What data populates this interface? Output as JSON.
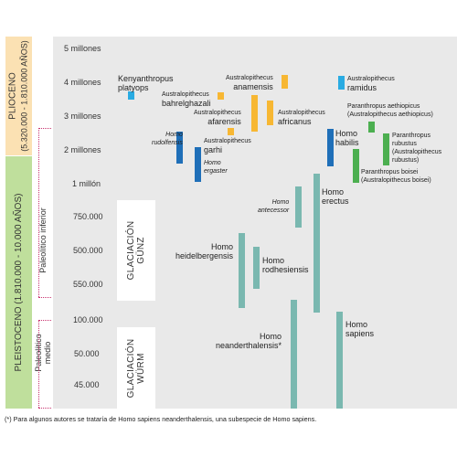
{
  "eras": {
    "pliocene": {
      "name": "PLIOCENO",
      "range": "(5.320.000 - 1.810.000 AÑOS)"
    },
    "pleistocene": {
      "name": "PLEISTOCENO (1.810.000 - 10.000 AÑOS)"
    }
  },
  "subperiods": {
    "lower": "Paleolítico inferior",
    "middle": "Paleolítico medio"
  },
  "ticks": [
    "5 millones",
    "4 millones",
    "3 millones",
    "2 millones",
    "1 millón",
    "750.000",
    "500.000",
    "550.000",
    "100.000",
    "50.000",
    "45.000"
  ],
  "glaciations": {
    "gunz": [
      "GLACIACIÓN",
      "GÜNZ"
    ],
    "wurm": [
      "GLACIACIÓN",
      "WÜRM"
    ]
  },
  "species": [
    {
      "id": "kenyanthropus",
      "lines": [
        "Kenyanthropus",
        "platyops"
      ],
      "color": "#29abe2"
    },
    {
      "id": "bahrelghazali",
      "lines": [
        "Australopithecus",
        "bahrelghazali"
      ],
      "color": "#f7b733"
    },
    {
      "id": "anamensis",
      "lines": [
        "Australopithecus",
        "anamensis"
      ],
      "color": "#f7b733"
    },
    {
      "id": "ramidus",
      "lines": [
        "Australopithecus",
        "ramidus"
      ],
      "color": "#29abe2"
    },
    {
      "id": "afarensis",
      "lines": [
        "Australopithecus",
        "afarensis"
      ],
      "color": "#f7b733"
    },
    {
      "id": "africanus",
      "lines": [
        "Australopithecus",
        "africanus"
      ],
      "color": "#f7b733"
    },
    {
      "id": "garhi",
      "lines": [
        "Australopithecus",
        "garhi"
      ],
      "color": "#f7b733"
    },
    {
      "id": "aethiopicus",
      "lines": [
        "Paranthropus aethiopicus",
        "(Australopithecus aethiopicus)"
      ],
      "color": "#4caf50"
    },
    {
      "id": "rudolfensis",
      "lines": [
        "Homo",
        "rudolfensis"
      ],
      "color": "#1f6fb8"
    },
    {
      "id": "ergaster",
      "lines": [
        "Homo",
        "ergaster"
      ],
      "color": "#1f6fb8"
    },
    {
      "id": "habilis",
      "lines": [
        "Homo",
        "habilis"
      ],
      "color": "#1f6fb8"
    },
    {
      "id": "robustus",
      "lines": [
        "Paranthropus",
        "rubustus",
        "(Australopithecus",
        "rubustus)"
      ],
      "color": "#4caf50"
    },
    {
      "id": "boisei",
      "lines": [
        "Paranthropus boisei",
        "(Australopithecus boisei)"
      ],
      "color": "#4caf50"
    },
    {
      "id": "antecessor",
      "lines": [
        "Homo",
        "antecessor"
      ],
      "color": "#7ab8b0"
    },
    {
      "id": "erectus",
      "lines": [
        "Homo",
        "erectus"
      ],
      "color": "#7ab8b0"
    },
    {
      "id": "heidelbergensis",
      "lines": [
        "Homo",
        "heidelbergensis"
      ],
      "color": "#7ab8b0"
    },
    {
      "id": "rhodesiensis",
      "lines": [
        "Homo",
        "rodhesiensis"
      ],
      "color": "#7ab8b0"
    },
    {
      "id": "neanderthalensis",
      "lines": [
        "Homo",
        "neanderthalensis*"
      ],
      "color": "#7ab8b0"
    },
    {
      "id": "sapiens",
      "lines": [
        "Homo",
        "sapiens"
      ],
      "color": "#7ab8b0"
    }
  ],
  "footnote": "(*) Para algunos autores se trataría de Homo sapiens neanderthalensis, una subespecie de Homo sapiens."
}
